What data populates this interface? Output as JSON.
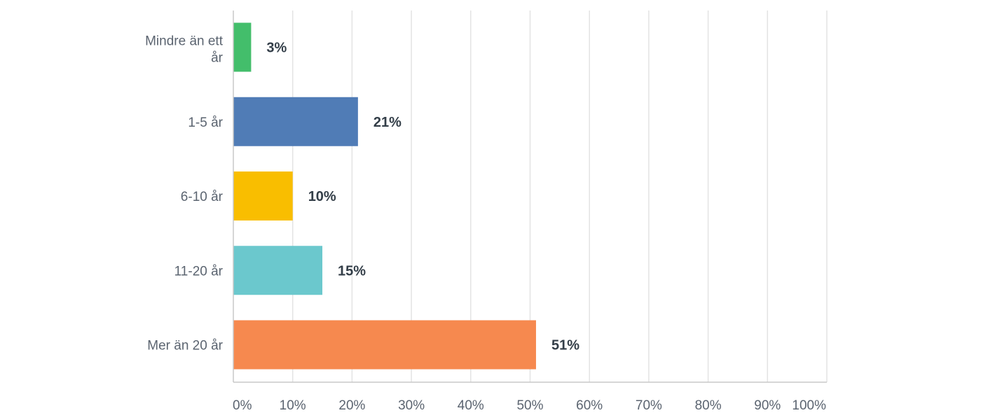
{
  "chart_data": {
    "type": "bar",
    "orientation": "horizontal",
    "categories": [
      "Mindre än ett år",
      "1-5 år",
      "6-10 år",
      "11-20 år",
      "Mer än 20 år"
    ],
    "values": [
      3,
      21,
      10,
      15,
      51
    ],
    "value_labels": [
      "3%",
      "21%",
      "10%",
      "15%",
      "51%"
    ],
    "colors": [
      "#43be6b",
      "#507cb6",
      "#f9be00",
      "#6bc8cd",
      "#f6894f"
    ],
    "xlim": [
      0,
      100
    ],
    "x_ticks": [
      "0%",
      "10%",
      "20%",
      "30%",
      "40%",
      "50%",
      "60%",
      "70%",
      "80%",
      "90%",
      "100%"
    ],
    "grid": true,
    "title": "",
    "xlabel": "",
    "ylabel": ""
  }
}
